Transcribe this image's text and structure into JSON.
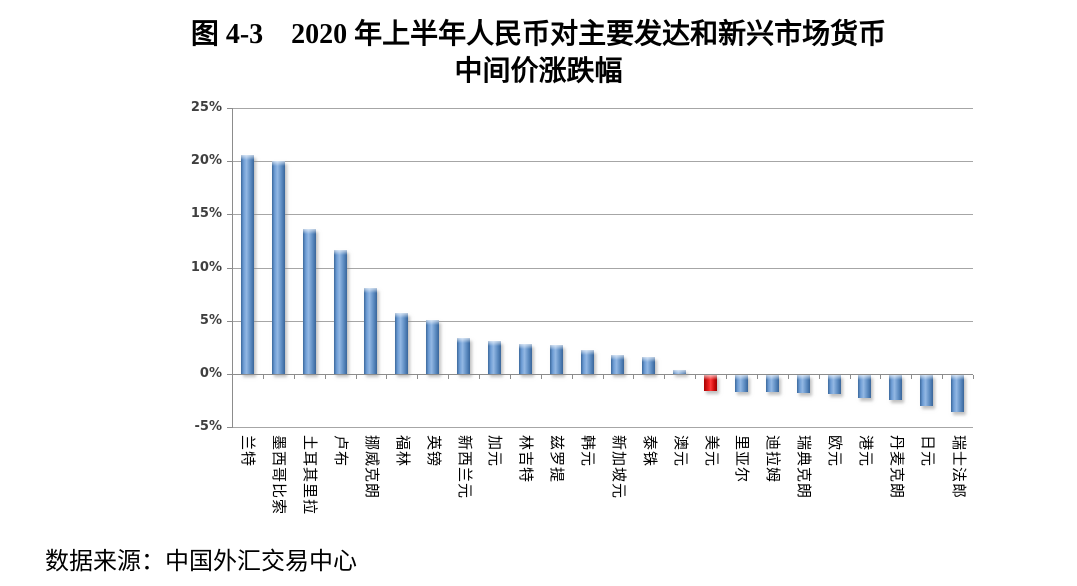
{
  "title": {
    "line1": "图 4-3　2020 年上半年人民币对主要发达和新兴市场货币",
    "line2": "中间价涨跌幅"
  },
  "footer": {
    "source_label": "数据来源：中国外汇交易中心"
  },
  "chart_data": {
    "type": "bar",
    "title": "图 4-3 2020 年上半年人民币对主要发达和新兴市场货币中间价涨跌幅",
    "xlabel": "",
    "ylabel": "",
    "unit": "%",
    "ylim": [
      -5,
      25
    ],
    "y_tick_step": 5,
    "y_ticks": [
      "25%",
      "20%",
      "15%",
      "10%",
      "5%",
      "0%",
      "-5%"
    ],
    "grid": true,
    "legend": "none",
    "categories": [
      "兰特",
      "墨西哥比索",
      "土耳其里拉",
      "卢布",
      "挪威克朗",
      "福林",
      "英镑",
      "新西兰元",
      "加元",
      "林吉特",
      "兹罗提",
      "韩元",
      "新加坡元",
      "泰铢",
      "澳元",
      "美元",
      "里亚尔",
      "迪拉姆",
      "瑞典克朗",
      "欧元",
      "港元",
      "丹麦克朗",
      "日元",
      "瑞士法郎"
    ],
    "values": [
      20.6,
      20.0,
      13.6,
      11.6,
      8.1,
      5.7,
      5.1,
      3.4,
      3.1,
      2.8,
      2.7,
      2.2,
      1.8,
      1.6,
      0.4,
      -1.5,
      -1.6,
      -1.6,
      -1.7,
      -1.8,
      -2.2,
      -2.4,
      -2.9,
      -3.5
    ],
    "bar_color": "#4f81bd",
    "highlight_color": "#ee1111",
    "highlight_category": "美元",
    "highlight_index": 15,
    "gridline_color": "#a6a6a6",
    "axis_color": "#8c8c8c"
  }
}
